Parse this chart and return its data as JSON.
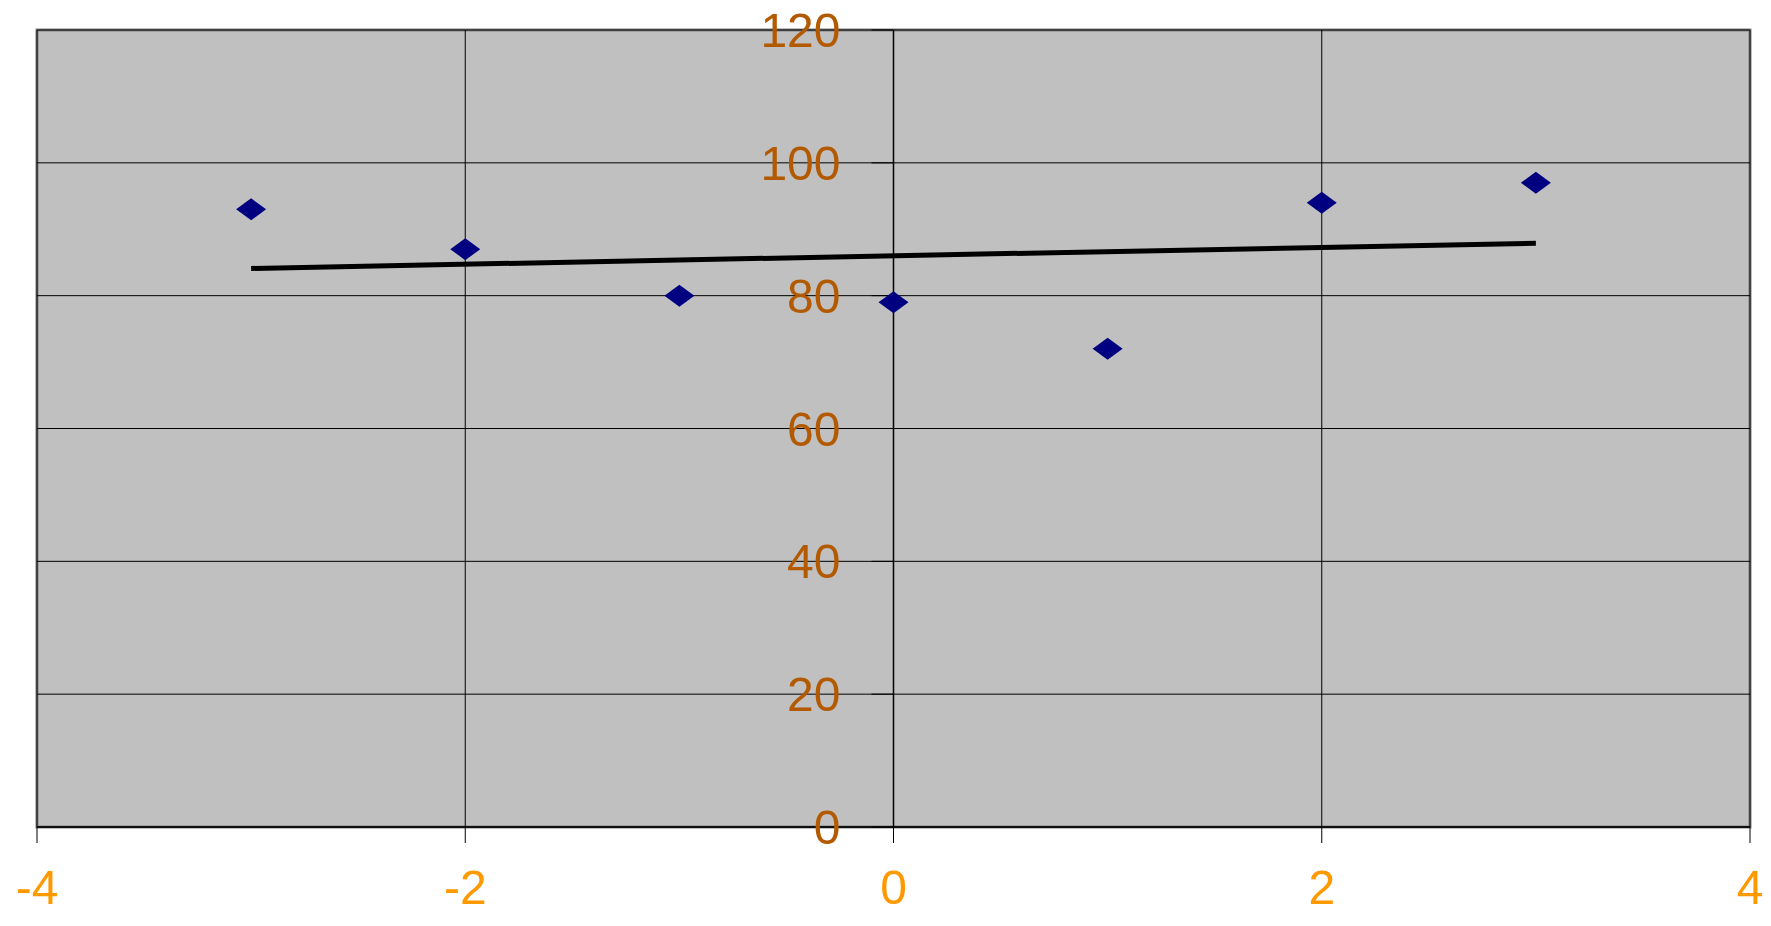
{
  "chart_data": {
    "type": "scatter",
    "x": [
      -3,
      -2,
      -1,
      0,
      1,
      2,
      3
    ],
    "series": [
      {
        "color": "#000080",
        "values": [
          93,
          87,
          80,
          79,
          72,
          94,
          97
        ],
        "marker": "diamond"
      },
      {
        "type": "line",
        "color": "#000000",
        "x": [
          -3,
          3
        ],
        "values": [
          84.1,
          87.9
        ],
        "marker": "none",
        "line_style": "solid"
      }
    ],
    "xlim": [
      -4,
      4
    ],
    "xticks": [
      -4,
      -2,
      0,
      2,
      4
    ],
    "ylim": [
      0,
      120
    ],
    "yticks": [
      0,
      20,
      40,
      60,
      80,
      100,
      120
    ],
    "grid": true
  }
}
